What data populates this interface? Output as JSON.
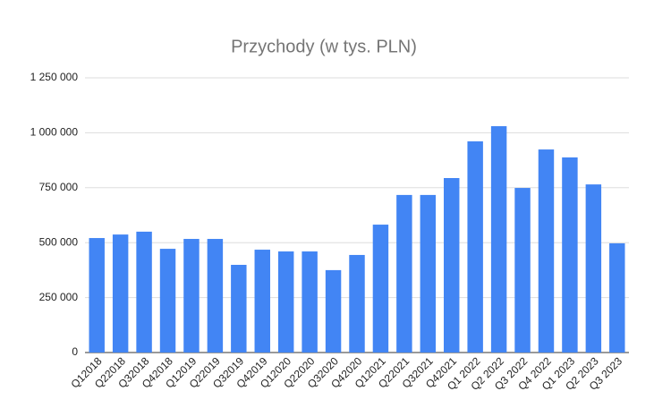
{
  "chart_data": {
    "type": "bar",
    "title": "Przychody (w tys. PLN)",
    "categories": [
      "Q12018",
      "Q22018",
      "Q32018",
      "Q42018",
      "Q12019",
      "Q22019",
      "Q32019",
      "Q42019",
      "Q12020",
      "Q22020",
      "Q32020",
      "Q42020",
      "Q12021",
      "Q22021",
      "Q32021",
      "Q42021",
      "Q1 2022",
      "Q2 2022",
      "Q3 2022",
      "Q4 2022",
      "Q1 2023",
      "Q2 2023",
      "Q3 2023"
    ],
    "values": [
      521000,
      537000,
      550000,
      472000,
      517000,
      517000,
      399000,
      468000,
      460000,
      460000,
      375000,
      444000,
      582000,
      717000,
      717000,
      794000,
      961000,
      1030000,
      749000,
      924000,
      888000,
      765000,
      497000
    ],
    "color": "#4285f4",
    "ylim": [
      0,
      1250000
    ],
    "yticks": [
      0,
      {
        "value": 250000,
        "label": "250 000"
      },
      {
        "value": 500000,
        "label": "500 000"
      },
      {
        "value": 750000,
        "label": "750 000"
      },
      {
        "value": 1000000,
        "label": "1 000 000"
      },
      {
        "value": 1250000,
        "label": "1 250 000"
      }
    ],
    "grid": true
  }
}
